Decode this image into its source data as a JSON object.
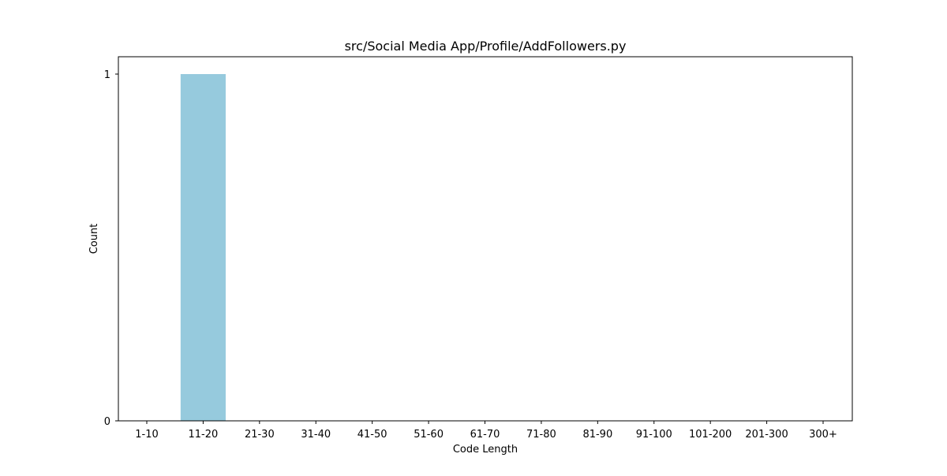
{
  "chart_data": {
    "type": "bar",
    "title": "src/Social Media App/Profile/AddFollowers.py",
    "xlabel": "Code Length",
    "ylabel": "Count",
    "categories": [
      "1-10",
      "11-20",
      "21-30",
      "31-40",
      "41-50",
      "51-60",
      "61-70",
      "71-80",
      "81-90",
      "91-100",
      "101-200",
      "201-300",
      "300+"
    ],
    "values": [
      0,
      1,
      0,
      0,
      0,
      0,
      0,
      0,
      0,
      0,
      0,
      0,
      0
    ],
    "ylim": [
      0,
      1.05
    ],
    "yticks": [
      0,
      1
    ],
    "bar_color": "#96cadd",
    "grid": false,
    "legend": "none"
  }
}
